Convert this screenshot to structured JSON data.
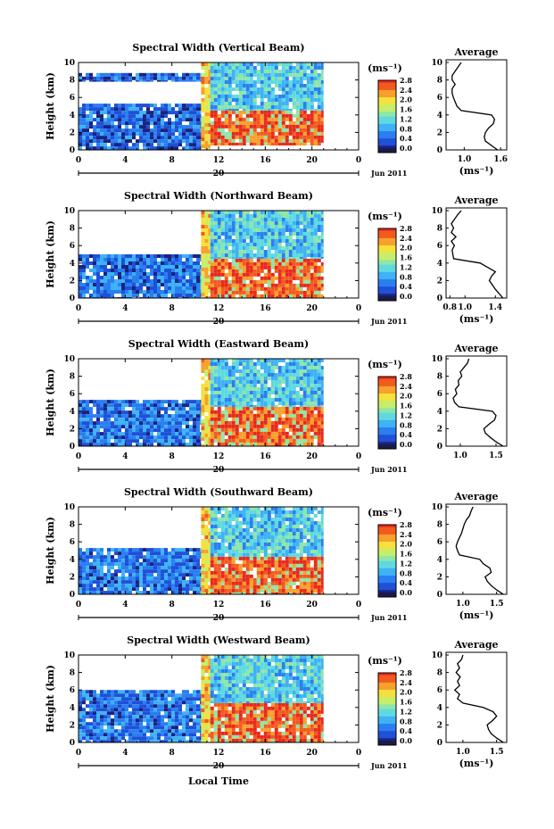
{
  "figure": {
    "xlabel": "Local Time",
    "date_label": "Jun 2011",
    "day_label": "20",
    "ylabel": "Height (km)",
    "unit_label": "(ms⁻¹)",
    "avg_title": "Average",
    "colorbar_ticks": [
      "2.8",
      "2.4",
      "2.0",
      "1.6",
      "1.2",
      "0.8",
      "0.4",
      "0.0"
    ],
    "colormap": [
      "#1a237e",
      "#1e50d8",
      "#2a7ff0",
      "#3fb2f5",
      "#5fd9e0",
      "#8ee6a8",
      "#c5ee6a",
      "#f5e13c",
      "#f7a02c",
      "#f25a1e",
      "#e8291b"
    ]
  },
  "chart_data": [
    {
      "type": "heatmap",
      "title": "Spectral Width (Vertical Beam)",
      "xlabel": "",
      "ylabel": "Height (km)",
      "xlim": [
        0,
        24
      ],
      "ylim": [
        0,
        10
      ],
      "x_ticks": [
        "0",
        "4",
        "8",
        "12",
        "16",
        "20",
        "0"
      ],
      "y_ticks": [
        "0",
        "2",
        "4",
        "6",
        "8",
        "10"
      ],
      "colorbar": {
        "label": "(ms⁻¹)",
        "range": [
          0.0,
          2.8
        ],
        "ticks": [
          "0.0",
          "0.4",
          "0.8",
          "1.2",
          "1.6",
          "2.0",
          "2.4",
          "2.8"
        ]
      },
      "regions": [
        {
          "t_start": 0.0,
          "t_end": 10.5,
          "h_start": 0.0,
          "h_end": 5.3,
          "value": 0.4
        },
        {
          "t_start": 0.0,
          "t_end": 10.5,
          "h_start": 7.8,
          "h_end": 8.8,
          "value": 0.4
        },
        {
          "t_start": 10.5,
          "t_end": 11.3,
          "h_start": 0.0,
          "h_end": 10.0,
          "value": 2.0
        },
        {
          "t_start": 11.3,
          "t_end": 21.0,
          "h_start": 0.5,
          "h_end": 4.5,
          "value": 2.6
        },
        {
          "t_start": 11.3,
          "t_end": 21.0,
          "h_start": 4.5,
          "h_end": 10.0,
          "value": 1.0
        }
      ],
      "profile": {
        "xlabel": "(ms⁻¹)",
        "xlim": [
          0.7,
          1.7
        ],
        "xticks": [
          "1.0",
          "1.6"
        ],
        "height": [
          0.0,
          0.5,
          1.0,
          1.5,
          2.0,
          2.5,
          3.0,
          3.5,
          4.0,
          4.5,
          5.0,
          5.5,
          6.0,
          6.5,
          7.0,
          7.5,
          8.0,
          8.5,
          9.0,
          9.5,
          10.0
        ],
        "value": [
          1.55,
          1.45,
          1.35,
          1.33,
          1.35,
          1.4,
          1.48,
          1.5,
          1.45,
          0.95,
          0.88,
          0.85,
          0.82,
          0.8,
          0.8,
          0.85,
          0.8,
          0.8,
          0.85,
          0.9,
          0.95
        ]
      }
    },
    {
      "type": "heatmap",
      "title": "Spectral Width (Northward Beam)",
      "xlabel": "",
      "ylabel": "Height (km)",
      "xlim": [
        0,
        24
      ],
      "ylim": [
        0,
        10
      ],
      "x_ticks": [
        "0",
        "4",
        "8",
        "12",
        "16",
        "20",
        "0"
      ],
      "y_ticks": [
        "0",
        "2",
        "4",
        "6",
        "8",
        "10"
      ],
      "colorbar": {
        "label": "(ms⁻¹)",
        "range": [
          0.0,
          2.8
        ],
        "ticks": [
          "0.0",
          "0.4",
          "0.8",
          "1.2",
          "1.6",
          "2.0",
          "2.4",
          "2.8"
        ]
      },
      "regions": [
        {
          "t_start": 0.0,
          "t_end": 10.5,
          "h_start": 0.0,
          "h_end": 5.0,
          "value": 0.5
        },
        {
          "t_start": 10.5,
          "t_end": 11.3,
          "h_start": 0.0,
          "h_end": 10.0,
          "value": 2.0
        },
        {
          "t_start": 11.3,
          "t_end": 21.0,
          "h_start": 0.0,
          "h_end": 4.5,
          "value": 2.6
        },
        {
          "t_start": 11.3,
          "t_end": 21.0,
          "h_start": 4.5,
          "h_end": 10.0,
          "value": 1.0
        }
      ],
      "profile": {
        "xlabel": "(ms⁻¹)",
        "xlim": [
          0.75,
          1.55
        ],
        "xticks": [
          "0.8",
          "1.0",
          "1.4"
        ],
        "height": [
          0.0,
          0.5,
          1.0,
          1.5,
          2.0,
          2.5,
          3.0,
          3.5,
          4.0,
          4.5,
          5.0,
          5.5,
          6.0,
          6.5,
          7.0,
          7.5,
          8.0,
          8.5,
          9.0,
          9.5,
          10.0
        ],
        "value": [
          1.5,
          1.45,
          1.4,
          1.36,
          1.32,
          1.35,
          1.4,
          1.3,
          1.2,
          0.85,
          0.84,
          0.83,
          0.86,
          0.82,
          0.88,
          0.82,
          0.85,
          0.82,
          0.86,
          0.9,
          0.95
        ]
      }
    },
    {
      "type": "heatmap",
      "title": "Spectral Width (Eastward Beam)",
      "xlabel": "",
      "ylabel": "Height (km)",
      "xlim": [
        0,
        24
      ],
      "ylim": [
        0,
        10
      ],
      "x_ticks": [
        "0",
        "4",
        "8",
        "12",
        "16",
        "20",
        "0"
      ],
      "y_ticks": [
        "0",
        "2",
        "4",
        "6",
        "8",
        "10"
      ],
      "colorbar": {
        "label": "(ms⁻¹)",
        "range": [
          0.0,
          2.8
        ],
        "ticks": [
          "0.0",
          "0.4",
          "0.8",
          "1.2",
          "1.6",
          "2.0",
          "2.4",
          "2.8"
        ]
      },
      "regions": [
        {
          "t_start": 0.0,
          "t_end": 10.5,
          "h_start": 0.0,
          "h_end": 5.3,
          "value": 0.5
        },
        {
          "t_start": 10.5,
          "t_end": 11.3,
          "h_start": 0.0,
          "h_end": 10.0,
          "value": 2.0
        },
        {
          "t_start": 11.3,
          "t_end": 21.0,
          "h_start": 0.0,
          "h_end": 4.5,
          "value": 2.6
        },
        {
          "t_start": 11.3,
          "t_end": 21.0,
          "h_start": 4.5,
          "h_end": 10.0,
          "value": 1.0
        }
      ],
      "profile": {
        "xlabel": "",
        "xlim": [
          0.8,
          1.65
        ],
        "xticks": [
          "1.0",
          "1.5"
        ],
        "height": [
          0.0,
          0.5,
          1.0,
          1.5,
          2.0,
          2.5,
          3.0,
          3.5,
          4.0,
          4.5,
          5.0,
          5.5,
          6.0,
          6.5,
          7.0,
          7.5,
          8.0,
          8.5,
          9.0,
          9.5,
          10.0
        ],
        "value": [
          1.6,
          1.5,
          1.42,
          1.35,
          1.33,
          1.4,
          1.48,
          1.5,
          1.45,
          0.98,
          0.92,
          0.9,
          0.95,
          0.93,
          0.98,
          0.97,
          1.02,
          1.0,
          1.05,
          1.1,
          1.12
        ]
      }
    },
    {
      "type": "heatmap",
      "title": "Spectral Width (Southward Beam)",
      "xlabel": "",
      "ylabel": "Height (km)",
      "xlim": [
        0,
        24
      ],
      "ylim": [
        0,
        10
      ],
      "x_ticks": [
        "0",
        "4",
        "8",
        "12",
        "16",
        "20",
        "0"
      ],
      "y_ticks": [
        "0",
        "2",
        "4",
        "6",
        "8",
        "10"
      ],
      "colorbar": {
        "label": "(ms⁻¹)",
        "range": [
          0.0,
          2.8
        ],
        "ticks": [
          "0.0",
          "0.4",
          "0.8",
          "1.2",
          "1.6",
          "2.0",
          "2.4",
          "2.8"
        ]
      },
      "regions": [
        {
          "t_start": 0.0,
          "t_end": 10.5,
          "h_start": 0.0,
          "h_end": 5.3,
          "value": 0.5
        },
        {
          "t_start": 10.5,
          "t_end": 11.3,
          "h_start": 0.0,
          "h_end": 10.0,
          "value": 2.0
        },
        {
          "t_start": 11.3,
          "t_end": 21.0,
          "h_start": 0.0,
          "h_end": 4.3,
          "value": 2.6
        },
        {
          "t_start": 11.3,
          "t_end": 21.0,
          "h_start": 4.3,
          "h_end": 10.0,
          "value": 1.0
        }
      ],
      "profile": {
        "xlabel": "(ms⁻¹)",
        "xlim": [
          0.75,
          1.65
        ],
        "xticks": [
          "1.0",
          "1.5"
        ],
        "height": [
          0.0,
          0.5,
          1.0,
          1.5,
          2.0,
          2.5,
          3.0,
          3.5,
          4.0,
          4.5,
          5.0,
          5.5,
          6.0,
          6.5,
          7.0,
          7.5,
          8.0,
          8.5,
          9.0,
          9.5,
          10.0
        ],
        "value": [
          1.6,
          1.5,
          1.42,
          1.36,
          1.33,
          1.42,
          1.4,
          1.3,
          1.25,
          0.95,
          0.92,
          0.9,
          0.92,
          0.95,
          0.98,
          1.0,
          1.02,
          1.05,
          1.1,
          1.12,
          1.15
        ]
      }
    },
    {
      "type": "heatmap",
      "title": "Spectral Width (Westward Beam)",
      "xlabel": "Local Time",
      "ylabel": "Height (km)",
      "xlim": [
        0,
        24
      ],
      "ylim": [
        0,
        10
      ],
      "x_ticks": [
        "0",
        "4",
        "8",
        "12",
        "16",
        "20",
        "0"
      ],
      "y_ticks": [
        "0",
        "2",
        "4",
        "6",
        "8",
        "10"
      ],
      "colorbar": {
        "label": "(ms⁻¹)",
        "range": [
          0.0,
          2.8
        ],
        "ticks": [
          "0.0",
          "0.4",
          "0.8",
          "1.2",
          "1.6",
          "2.0",
          "2.4",
          "2.8"
        ]
      },
      "regions": [
        {
          "t_start": 0.0,
          "t_end": 10.5,
          "h_start": 0.0,
          "h_end": 6.0,
          "value": 0.5
        },
        {
          "t_start": 10.5,
          "t_end": 11.3,
          "h_start": 0.0,
          "h_end": 10.0,
          "value": 2.0
        },
        {
          "t_start": 11.3,
          "t_end": 21.0,
          "h_start": 0.0,
          "h_end": 4.5,
          "value": 2.6
        },
        {
          "t_start": 11.3,
          "t_end": 21.0,
          "h_start": 4.5,
          "h_end": 10.0,
          "value": 1.0
        }
      ],
      "profile": {
        "xlabel": "(ms⁻¹)",
        "xlim": [
          0.75,
          1.65
        ],
        "xticks": [
          "1.0",
          "1.5"
        ],
        "height": [
          0.0,
          0.5,
          1.0,
          1.5,
          2.0,
          2.5,
          3.0,
          3.5,
          4.0,
          4.5,
          5.0,
          5.5,
          6.0,
          6.5,
          7.0,
          7.5,
          8.0,
          8.5,
          9.0,
          9.5,
          10.0
        ],
        "value": [
          1.6,
          1.5,
          1.42,
          1.38,
          1.36,
          1.44,
          1.5,
          1.45,
          1.3,
          1.0,
          0.92,
          0.95,
          0.88,
          0.95,
          0.92,
          0.96,
          0.9,
          0.95,
          0.92,
          0.98,
          1.0
        ]
      }
    }
  ]
}
